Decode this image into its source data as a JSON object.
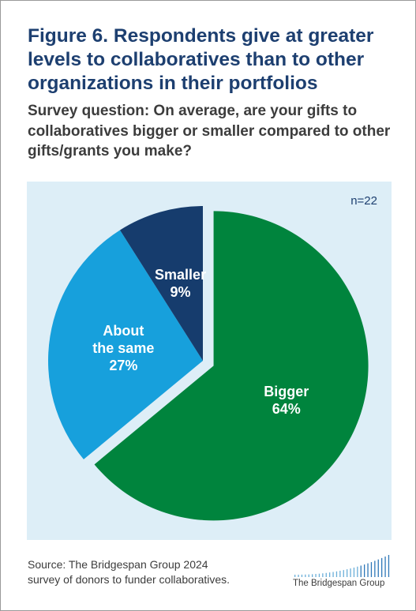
{
  "title": "Figure 6. Respondents give at greater levels to collaboratives than to other organizations in their portfolios",
  "subtitle": "Survey question: On average, are your gifts to collaboratives bigger or smaller compared to other gifts/grants you make?",
  "sample_size": "n=22",
  "source": {
    "line1": "Source: The Bridgespan Group 2024",
    "line2": "survey of donors to funder collaboratives."
  },
  "logo": {
    "text": "The Bridgespan Group",
    "icon": "bar-cluster-logo-icon"
  },
  "colors": {
    "title": "#1d3f70",
    "panel_bg": "#ddeef7",
    "bigger": "#00843d",
    "about_same": "#17a0dc",
    "smaller": "#163c6d"
  },
  "chart_data": {
    "type": "pie",
    "title": "",
    "slices": [
      {
        "key": "bigger",
        "lines": [
          "Bigger",
          "64%"
        ],
        "value": 64,
        "color": "#00843d"
      },
      {
        "key": "about-the-same",
        "lines": [
          "About",
          "the same",
          "27%"
        ],
        "value": 27,
        "color": "#17a0dc"
      },
      {
        "key": "smaller",
        "lines": [
          "Smaller",
          "9%"
        ],
        "value": 9,
        "color": "#163c6d"
      }
    ],
    "start_angle_deg": 0,
    "direction": "clockwise",
    "exploded_slice": "bigger"
  }
}
